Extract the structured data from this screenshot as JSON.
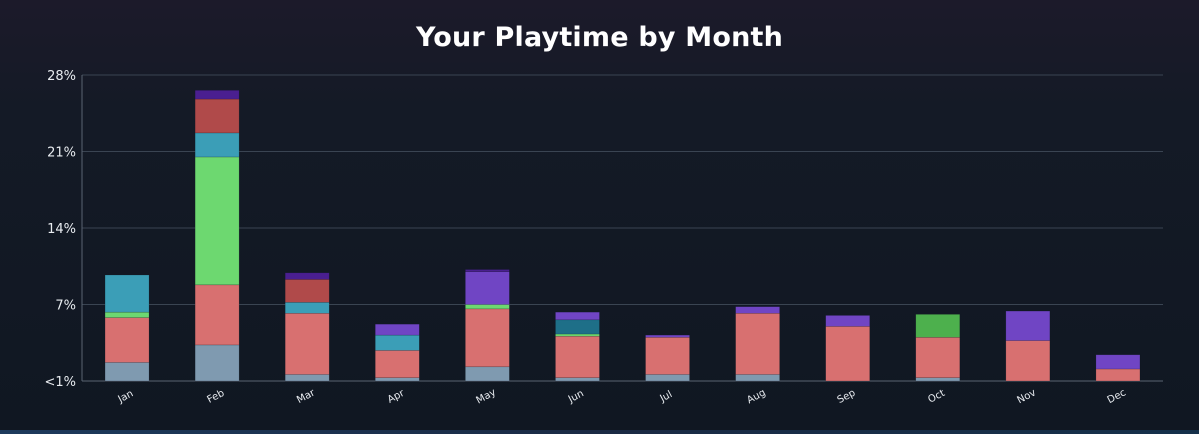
{
  "page": {
    "title": "Your Playtime by Month"
  },
  "chart_data": {
    "type": "bar",
    "stacked": true,
    "title": "Your Playtime by Month",
    "xlabel": "",
    "ylabel": "",
    "ylim": [
      0,
      28
    ],
    "yticks": [
      {
        "value": 0,
        "label": "<1%"
      },
      {
        "value": 7,
        "label": "7%"
      },
      {
        "value": 14,
        "label": "14%"
      },
      {
        "value": 21,
        "label": "21%"
      },
      {
        "value": 28,
        "label": "28%"
      }
    ],
    "grid": true,
    "legend": "none",
    "categories": [
      "Jan",
      "Feb",
      "Mar",
      "Apr",
      "May",
      "Jun",
      "Jul",
      "Aug",
      "Sep",
      "Oct",
      "Nov",
      "Dec"
    ],
    "series": [
      {
        "color": "#7f9ab0",
        "values": [
          1.7,
          3.3,
          0.6,
          0.3,
          1.3,
          0.3,
          0.6,
          0.6,
          0,
          0.3,
          0,
          0
        ]
      },
      {
        "color": "#d87070",
        "values": [
          4.1,
          5.5,
          5.6,
          2.5,
          5.3,
          3.8,
          3.4,
          5.6,
          5.0,
          3.7,
          3.7,
          1.1
        ]
      },
      {
        "color": "#6dd870",
        "values": [
          0.5,
          11.7,
          0,
          0,
          0.4,
          0.2,
          0,
          0,
          0,
          0,
          0,
          0
        ]
      },
      {
        "color": "#3b9eb7",
        "values": [
          3.4,
          2.2,
          1.0,
          1.4,
          0,
          0,
          0,
          0,
          0,
          0,
          0,
          0
        ]
      },
      {
        "color": "#1e6f88",
        "values": [
          0,
          0,
          0,
          0,
          0,
          1.3,
          0,
          0,
          0,
          0,
          0,
          0
        ]
      },
      {
        "color": "#b04a4a",
        "values": [
          0,
          3.1,
          2.1,
          0,
          0,
          0,
          0,
          0,
          0,
          0,
          0,
          0
        ]
      },
      {
        "color": "#4db04d",
        "values": [
          0,
          0,
          0,
          0,
          0,
          0,
          0,
          0,
          0,
          2.1,
          0,
          0
        ]
      },
      {
        "color": "#7045c4",
        "values": [
          0,
          0,
          0,
          1.0,
          3.0,
          0.7,
          0.2,
          0.6,
          1.0,
          0,
          2.7,
          1.3
        ]
      },
      {
        "color": "#4a1f90",
        "values": [
          0,
          0.8,
          0.6,
          0,
          0.2,
          0,
          0,
          0,
          0,
          0,
          0,
          0
        ]
      }
    ]
  }
}
